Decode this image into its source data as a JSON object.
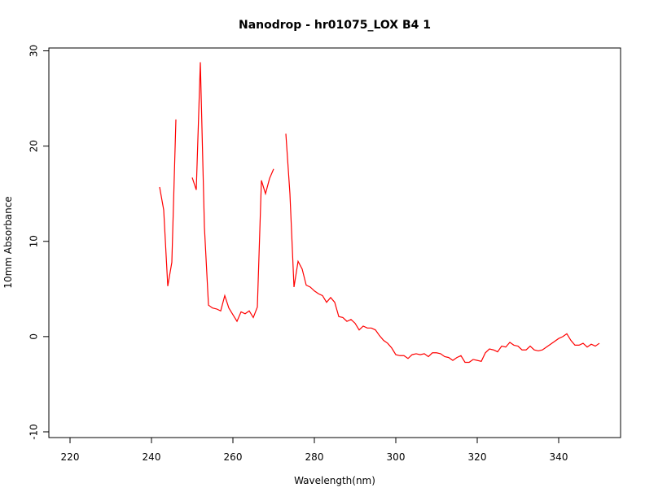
{
  "chart_data": {
    "type": "line",
    "title": "Nanodrop - hr01075_LOX B4 1",
    "x_label": "Wavelength(nm)",
    "y_label": "10mm Absorbance",
    "x": [
      242,
      243,
      244,
      245,
      246,
      247,
      248,
      249,
      250,
      251,
      252,
      253,
      254,
      255,
      256,
      257,
      258,
      259,
      260,
      261,
      262,
      263,
      264,
      265,
      266,
      267,
      268,
      269,
      270,
      271,
      272,
      273,
      274,
      275,
      276,
      277,
      278,
      279,
      280,
      281,
      282,
      283,
      284,
      285,
      286,
      287,
      288,
      289,
      290,
      291,
      292,
      293,
      294,
      295,
      296,
      297,
      298,
      299,
      300,
      301,
      302,
      303,
      304,
      305,
      306,
      307,
      308,
      309,
      310,
      311,
      312,
      313,
      314,
      315,
      316,
      317,
      318,
      319,
      320,
      321,
      322,
      323,
      324,
      325,
      326,
      327,
      328,
      329,
      330,
      331,
      332,
      333,
      334,
      335,
      336,
      337,
      338,
      339,
      340,
      341,
      342,
      343,
      344,
      345,
      346,
      347,
      348,
      349,
      350
    ],
    "series": [
      {
        "name": "absorbance",
        "color": "#ff0000",
        "values": [
          15.7,
          13.3,
          5.3,
          7.8,
          22.8,
          null,
          null,
          null,
          16.7,
          15.4,
          28.8,
          11.5,
          3.3,
          3.0,
          2.9,
          2.7,
          4.3,
          3.0,
          2.3,
          1.6,
          2.6,
          2.4,
          2.7,
          2.0,
          3.1,
          16.4,
          15.0,
          16.6,
          17.6,
          null,
          null,
          21.3,
          15.0,
          5.2,
          7.9,
          7.1,
          5.4,
          5.2,
          4.8,
          4.5,
          4.3,
          3.6,
          4.1,
          3.6,
          2.1,
          2.0,
          1.6,
          1.8,
          1.4,
          0.7,
          1.1,
          0.9,
          0.9,
          0.7,
          0.1,
          -0.4,
          -0.7,
          -1.2,
          -1.9,
          -2.0,
          -2.0,
          -2.3,
          -1.9,
          -1.8,
          -1.9,
          -1.8,
          -2.1,
          -1.7,
          -1.7,
          -1.8,
          -2.1,
          -2.2,
          -2.5,
          -2.2,
          -2.0,
          -2.7,
          -2.7,
          -2.4,
          -2.5,
          -2.6,
          -1.7,
          -1.3,
          -1.4,
          -1.6,
          -1.0,
          -1.1,
          -0.6,
          -0.9,
          -1.0,
          -1.4,
          -1.4,
          -1.0,
          -1.4,
          -1.5,
          -1.4,
          -1.1,
          -0.8,
          -0.5,
          -0.2,
          0.0,
          0.3,
          -0.4,
          -0.9,
          -0.9,
          -0.7,
          -1.1,
          -0.8,
          -1.0,
          -0.7
        ]
      }
    ],
    "xlim": [
      214.8,
      355.2
    ],
    "xticks": [
      220,
      240,
      260,
      280,
      300,
      320,
      340
    ],
    "ylim": [
      -10.6,
      30.3
    ],
    "yticks": [
      -10,
      0,
      10,
      20,
      30
    ]
  }
}
